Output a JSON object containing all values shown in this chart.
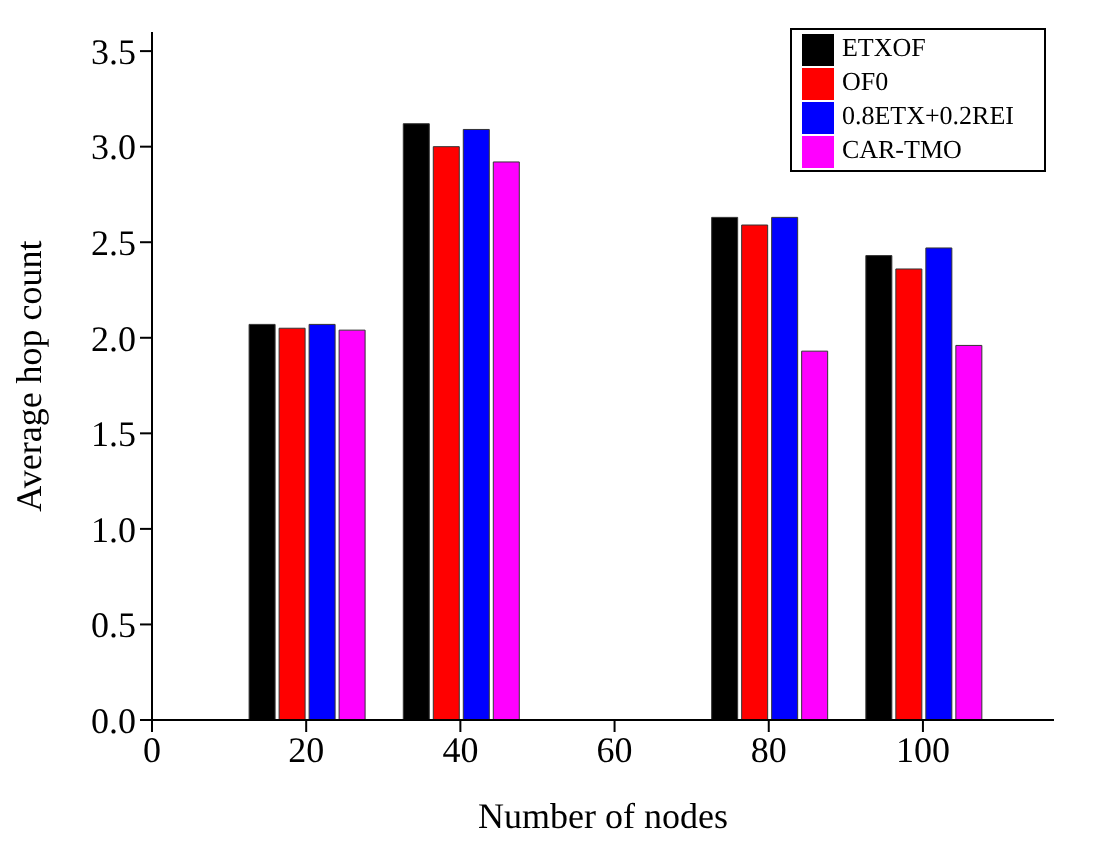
{
  "chart_data": {
    "type": "bar",
    "xlabel": "Number of  nodes",
    "ylabel": "Average hop count",
    "x": [
      20,
      40,
      80,
      100
    ],
    "series": [
      {
        "name": "ETXOF",
        "color": "#000000",
        "values": [
          2.07,
          3.12,
          2.63,
          2.43
        ]
      },
      {
        "name": "OF0",
        "color": "#ff0000",
        "values": [
          2.05,
          3.0,
          2.59,
          2.36
        ]
      },
      {
        "name": "0.8ETX+0.2REI",
        "color": "#0000ff",
        "values": [
          2.07,
          3.09,
          2.63,
          2.47
        ]
      },
      {
        "name": "CAR-TMO",
        "color": "#ff00ff",
        "values": [
          2.04,
          2.92,
          1.93,
          1.96
        ]
      }
    ],
    "xlim": [
      0,
      117
    ],
    "xticks": [
      0,
      20,
      40,
      60,
      80,
      100
    ],
    "ylim": [
      0,
      3.6
    ],
    "yticks": [
      {
        "value": 0,
        "label": "0.0"
      },
      0.5,
      {
        "value": 1,
        "label": "1.0"
      },
      1.5,
      {
        "value": 2,
        "label": "2.0"
      },
      2.5,
      {
        "value": 3,
        "label": "3.0"
      },
      3.5
    ],
    "grid": false,
    "legend": "top right"
  }
}
